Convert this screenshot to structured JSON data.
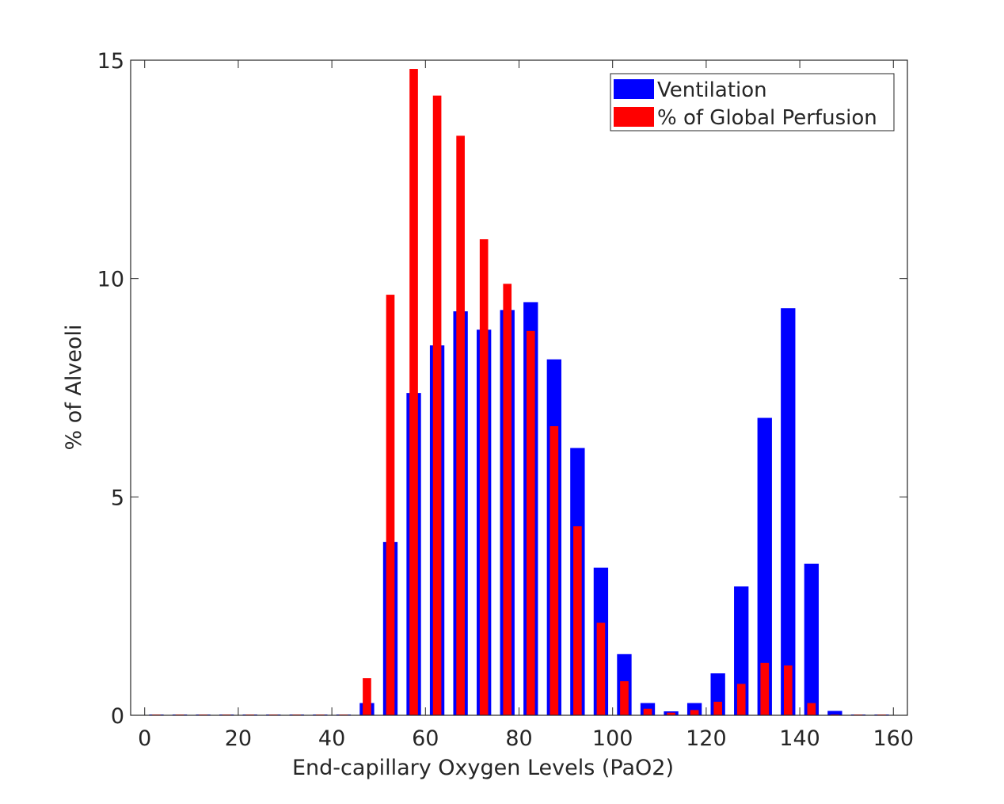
{
  "chart_data": {
    "type": "bar",
    "title": "",
    "xlabel": "End-capillary  Oxygen Levels (PaO2)",
    "ylabel": "% of Alveoli",
    "xlim": [
      -3,
      163
    ],
    "ylim": [
      0,
      15
    ],
    "xticks": [
      0,
      20,
      40,
      60,
      80,
      100,
      120,
      140,
      160
    ],
    "xtick_labels": [
      "0",
      "20",
      "40",
      "60",
      "80",
      "100",
      "120",
      "140",
      "160"
    ],
    "yticks": [
      0,
      5,
      10,
      15
    ],
    "ytick_labels": [
      "0",
      "5",
      "10",
      "15"
    ],
    "legend_position": "top-right",
    "grid": false,
    "x": [
      2.5,
      7.5,
      12.5,
      17.5,
      22.5,
      27.5,
      32.5,
      37.5,
      42.5,
      47.5,
      52.5,
      57.5,
      62.5,
      67.5,
      72.5,
      77.5,
      82.5,
      87.5,
      92.5,
      97.5,
      102.5,
      107.5,
      112.5,
      117.5,
      122.5,
      127.5,
      132.5,
      137.5,
      142.5,
      147.5,
      152.5,
      157.5
    ],
    "series": [
      {
        "name": "Ventilation",
        "color": "#0000ff",
        "values": [
          0,
          0,
          0,
          0,
          0,
          0,
          0,
          0,
          0,
          0.28,
          3.97,
          7.38,
          8.47,
          9.25,
          8.83,
          9.28,
          9.46,
          8.15,
          6.12,
          3.38,
          1.4,
          0.28,
          0.09,
          0.28,
          0.96,
          2.95,
          6.81,
          9.32,
          3.47,
          0.1,
          0,
          0
        ]
      },
      {
        "name": "% of Global Perfusion",
        "color": "#ff0000",
        "values": [
          0,
          0,
          0,
          0,
          0,
          0,
          0,
          0,
          0,
          0.85,
          9.63,
          14.8,
          14.19,
          13.27,
          10.9,
          9.88,
          8.8,
          6.62,
          4.33,
          2.12,
          0.78,
          0.15,
          0.06,
          0.12,
          0.31,
          0.72,
          1.2,
          1.14,
          0.28,
          0,
          0,
          0
        ]
      }
    ]
  }
}
